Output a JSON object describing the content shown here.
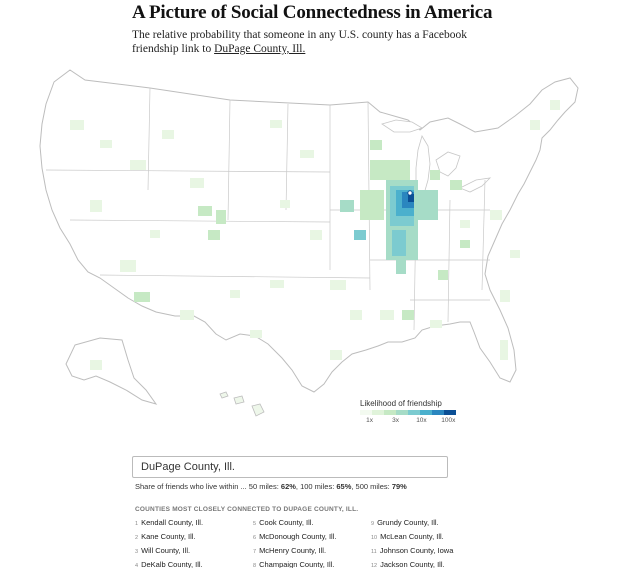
{
  "header": {
    "title": "A Picture of Social Connectedness in America",
    "dek_text": "The relative probability that someone in any U.S. county has a Facebook friendship link to ",
    "dek_link": "DuPage County, Ill."
  },
  "legend": {
    "title": "Likelihood of friendship",
    "colors": [
      "#f3faf0",
      "#e0f3da",
      "#c6e9c4",
      "#a6dcc7",
      "#7ccbd0",
      "#4bb0cd",
      "#2a86bf",
      "#0b4f95"
    ],
    "ticks": [
      {
        "label": "1x",
        "pos": 0.1
      },
      {
        "label": "3x",
        "pos": 0.37
      },
      {
        "label": "10x",
        "pos": 0.64
      },
      {
        "label": "100x",
        "pos": 0.92
      }
    ]
  },
  "search": {
    "value": "DuPage County, Ill."
  },
  "share": {
    "prefix": "Share of friends who live within ... 50 miles: ",
    "miles50": "62%",
    "sep1": ",  100 miles: ",
    "miles100": "65%",
    "sep2": ",  500 miles: ",
    "miles500": "79%"
  },
  "list": {
    "heading": "Counties most closely connected to DuPage County, Ill.",
    "items": [
      {
        "num": "1",
        "name": "Kendall County, Ill."
      },
      {
        "num": "2",
        "name": "Kane County, Ill."
      },
      {
        "num": "3",
        "name": "Will County, Ill."
      },
      {
        "num": "4",
        "name": "DeKalb County, Ill."
      },
      {
        "num": "5",
        "name": "Cook County, Ill."
      },
      {
        "num": "6",
        "name": "McDonough County, Ill."
      },
      {
        "num": "7",
        "name": "McHenry County, Ill."
      },
      {
        "num": "8",
        "name": "Champaign County, Ill."
      },
      {
        "num": "9",
        "name": "Grundy County, Ill."
      },
      {
        "num": "10",
        "name": "McLean County, Ill."
      },
      {
        "num": "11",
        "name": "Johnson County, Iowa"
      },
      {
        "num": "12",
        "name": "Jackson County, Ill."
      }
    ]
  }
}
